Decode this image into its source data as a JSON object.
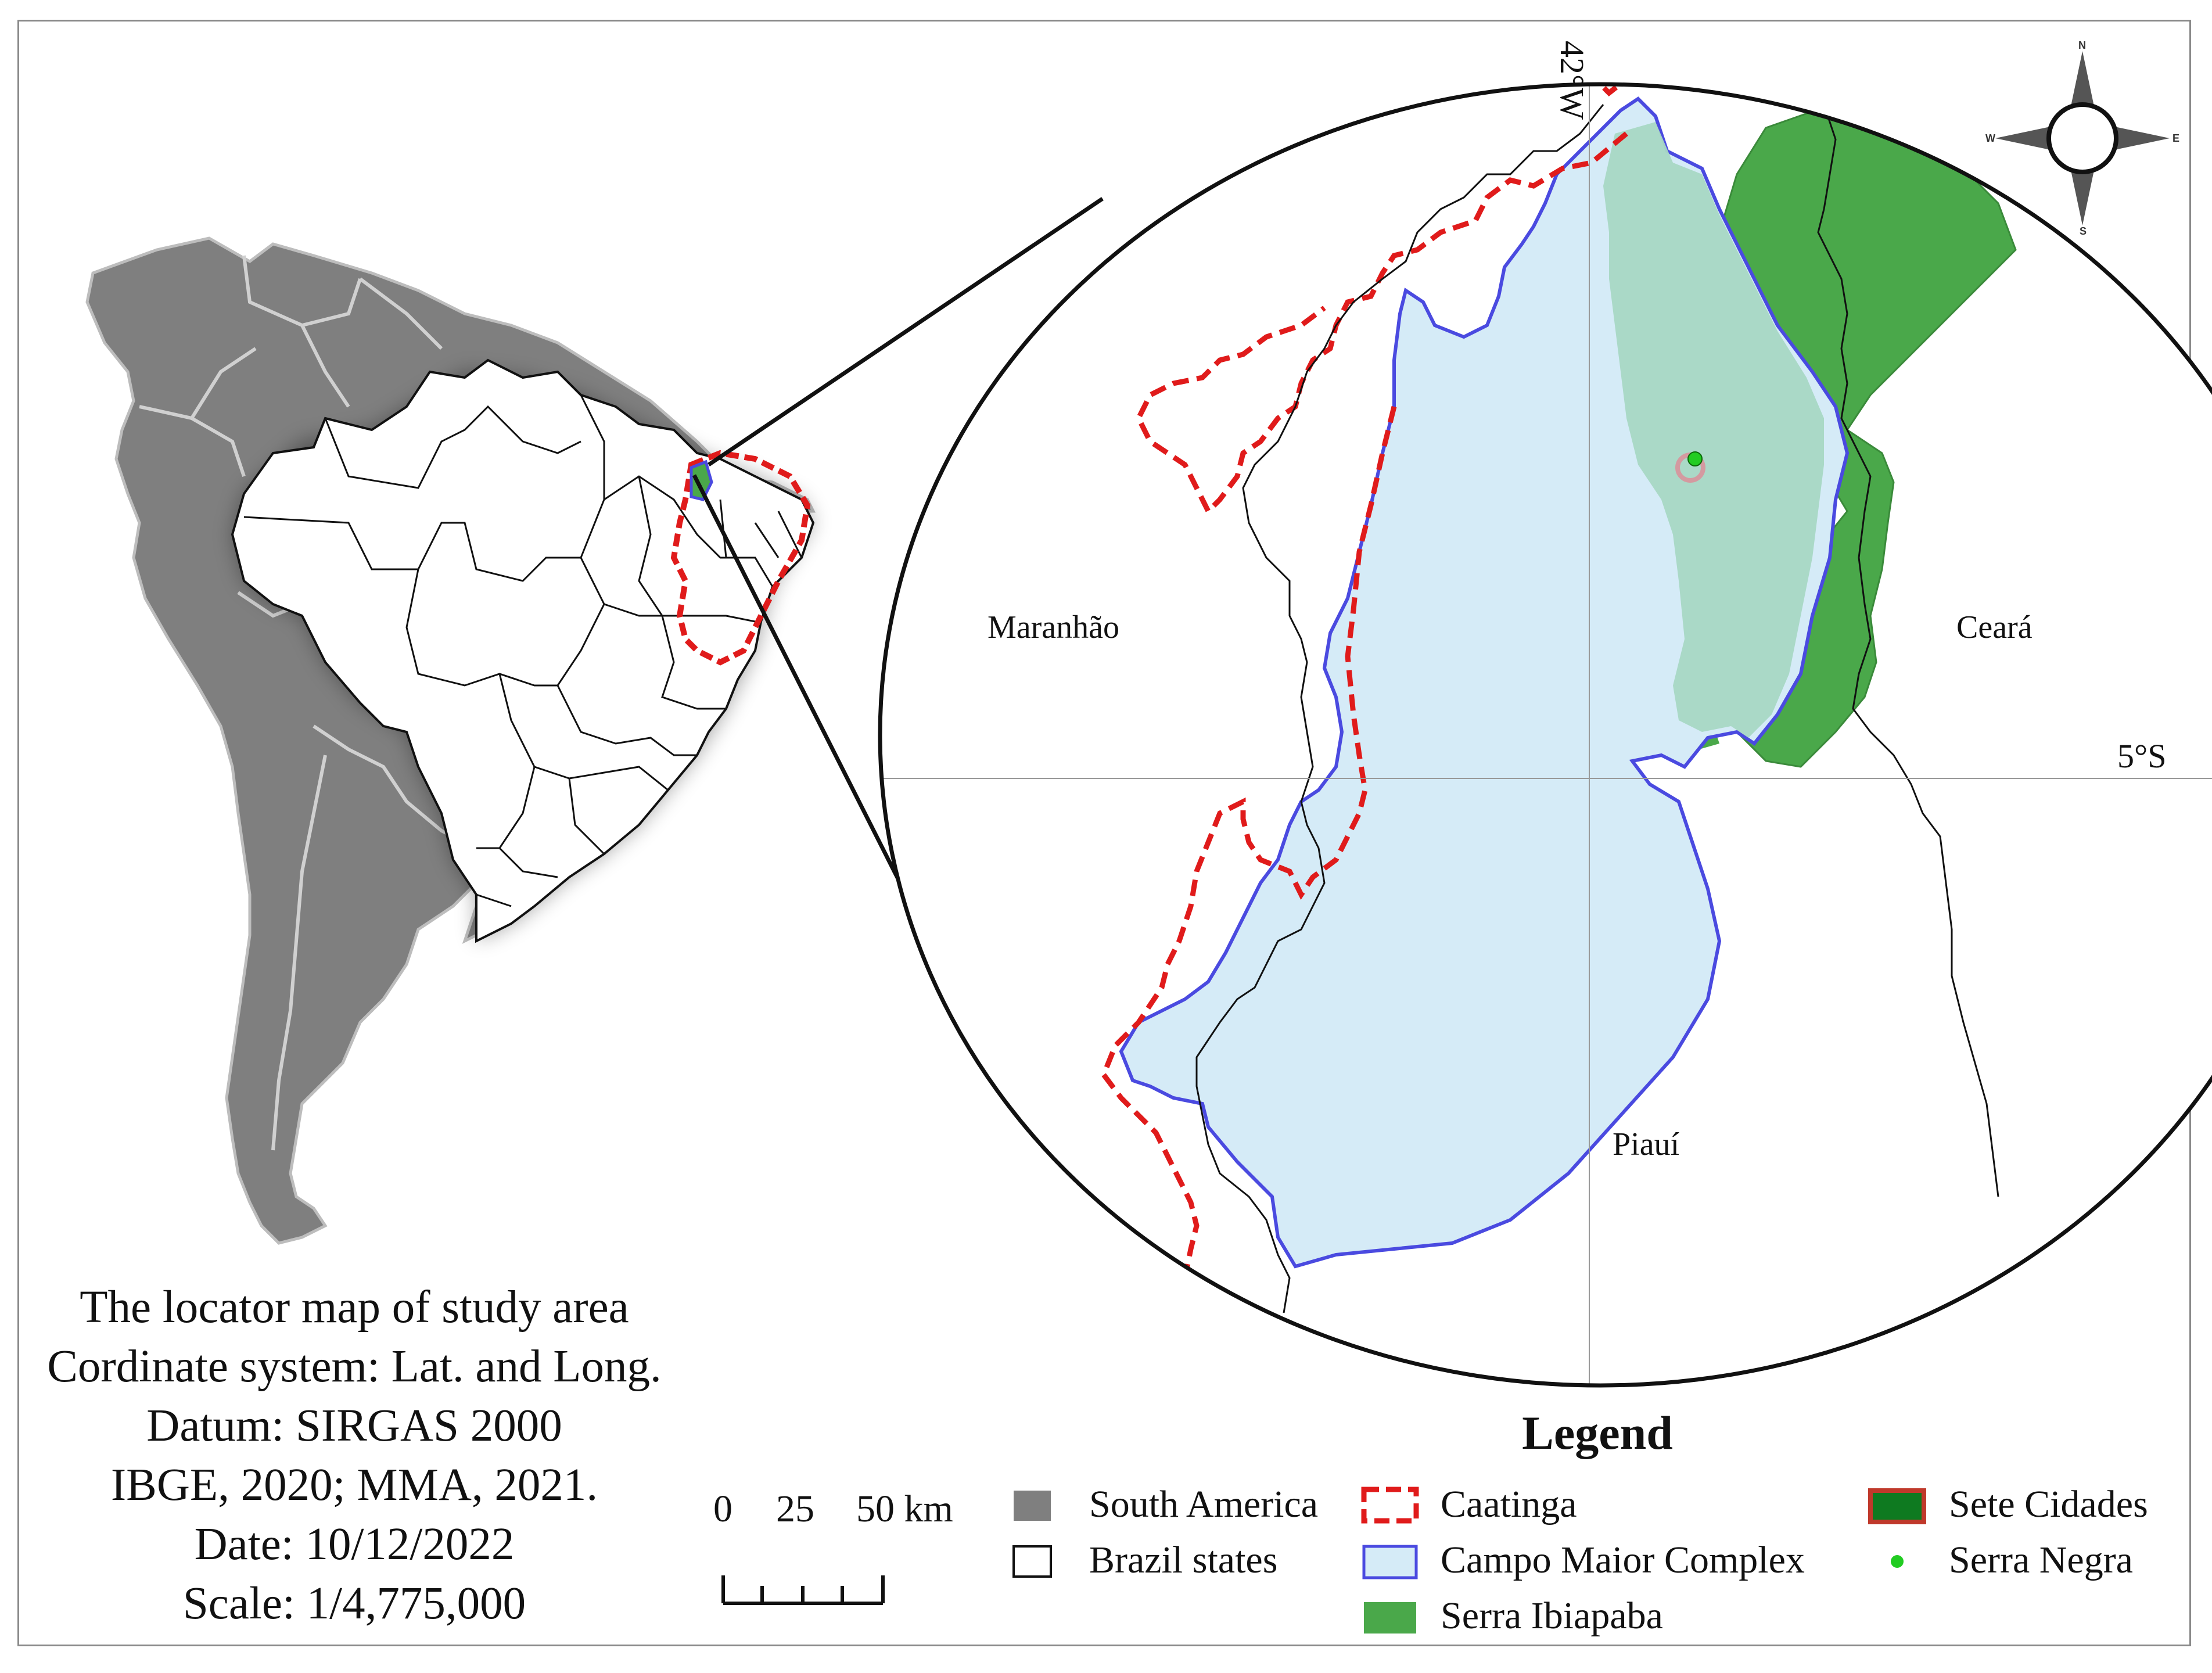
{
  "info": {
    "line1": "The locator map of study area",
    "line2": "Cordinate system: Lat. and Long.",
    "line3": "Datum: SIRGAS 2000",
    "line4": "IBGE, 2020; MMA, 2021.",
    "line5": "Date: 10/12/2022",
    "line6": "Scale: 1/4,775,000"
  },
  "legend": {
    "title": "Legend",
    "south_america": "South America",
    "brazil_states": "Brazil states",
    "caatinga": "Caatinga",
    "campo_maior": "Campo Maior Complex",
    "serra_ibiapaba": "Serra Ibiapaba",
    "sete_cidades": "Sete Cidades",
    "serra_negra": "Serra Negra"
  },
  "scale_bar": {
    "l0": "0",
    "l25": "25",
    "l50": "50 km"
  },
  "places": {
    "maranhao": "Maranhão",
    "ceara": "Ceará",
    "piaui": "Piauí"
  },
  "grid": {
    "meridian": "42°W",
    "parallel": "5°S"
  },
  "compass": {
    "n": "N",
    "s": "S",
    "e": "E",
    "w": "W"
  },
  "colors": {
    "south_america": "#7f7f7f",
    "caatinga": "#e01b1b",
    "campo_maior_fill": "#d5ebf7",
    "campo_maior_line": "#4a4ae0",
    "serra_ibiapaba": "#4aa84a",
    "sete_cidades": "#a8d8c4",
    "serra_negra": "#22cc22"
  }
}
